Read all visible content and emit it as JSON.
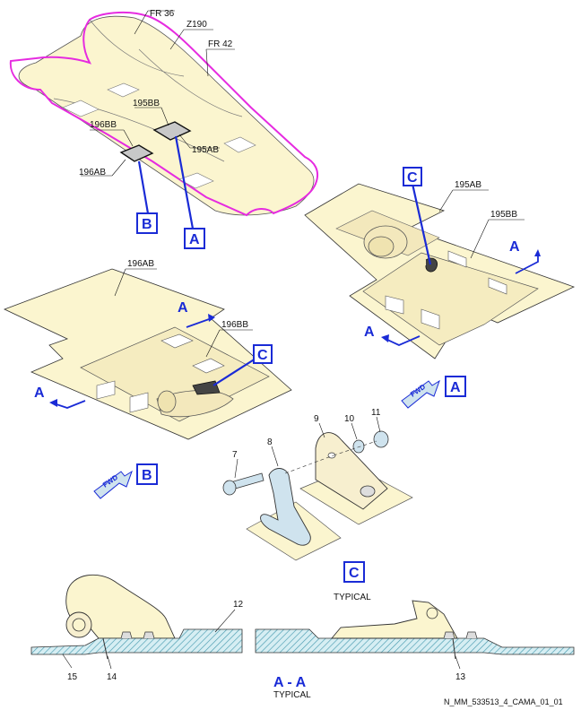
{
  "top_view": {
    "frame_labels": [
      "FR 36",
      "Z190",
      "FR 42"
    ],
    "panel_labels": [
      "195BB",
      "196BB",
      "195AB",
      "196AB"
    ],
    "view_callouts": [
      "B",
      "A"
    ]
  },
  "view_b": {
    "panel_labels": [
      "196AB",
      "196BB"
    ],
    "section_marks": [
      "A",
      "A"
    ],
    "detail_callout": "C",
    "fwd_text": "FWD",
    "view_letter": "B"
  },
  "view_a": {
    "panel_labels": [
      "195AB",
      "195BB"
    ],
    "section_marks": [
      "A",
      "A"
    ],
    "detail_callout": "C",
    "fwd_text": "FWD",
    "view_letter": "A"
  },
  "detail_c": {
    "item_numbers": [
      "7",
      "8",
      "9",
      "10",
      "11"
    ],
    "title": "C",
    "subtitle": "TYPICAL"
  },
  "section_aa": {
    "item_numbers": [
      "12",
      "15",
      "14",
      "13"
    ],
    "title": "A - A",
    "subtitle": "TYPICAL"
  },
  "figure_reference": "N_MM_533513_4_CAMA_01_01",
  "colors": {
    "panel_fill": "#fbf5cf",
    "outline_magenta": "#e62be0",
    "callout_blue": "#1a2bd6",
    "hatch_teal": "#5aa7b7",
    "part_blue": "#cfe3ee",
    "gray_fill": "#c8c8c8"
  }
}
